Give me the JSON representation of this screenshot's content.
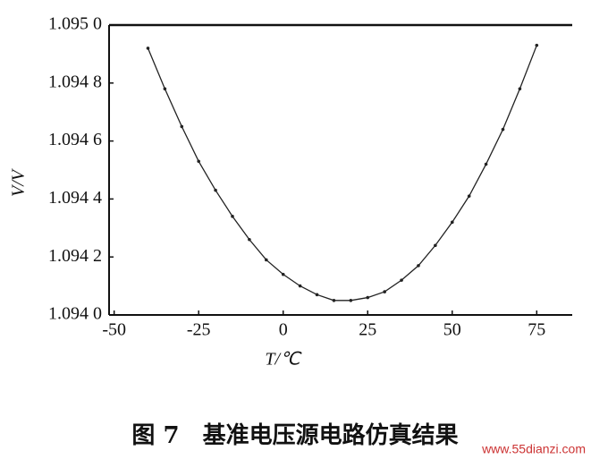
{
  "chart_data": {
    "type": "line",
    "xlabel": "T/℃",
    "ylabel": "V/V",
    "caption": "图 7　基准电压源电路仿真结果",
    "watermark": "www.55dianzi.com",
    "x": [
      -40,
      -35,
      -30,
      -25,
      -20,
      -15,
      -10,
      -5,
      0,
      5,
      10,
      15,
      20,
      25,
      30,
      35,
      40,
      45,
      50,
      55,
      60,
      65,
      70,
      75
    ],
    "values": [
      1.09492,
      1.09478,
      1.09465,
      1.09453,
      1.09443,
      1.09434,
      1.09426,
      1.09419,
      1.09414,
      1.0941,
      1.09407,
      1.09405,
      1.09405,
      1.09406,
      1.09408,
      1.09412,
      1.09417,
      1.09424,
      1.09432,
      1.09441,
      1.09452,
      1.09464,
      1.09478,
      1.09493
    ],
    "color": "#222222",
    "xlim": [
      -51.5,
      85.5
    ],
    "ylim": [
      1.094,
      1.095
    ],
    "xticks": [
      -50,
      -25,
      0,
      25,
      50,
      75
    ],
    "yticks": [
      {
        "value": 1.094,
        "label": "1.094 0"
      },
      {
        "value": 1.0942,
        "label": "1.094 2"
      },
      {
        "value": 1.0944,
        "label": "1.094 4"
      },
      {
        "value": 1.0946,
        "label": "1.094 6"
      },
      {
        "value": 1.0948,
        "label": "1.094 8"
      },
      {
        "value": 1.095,
        "label": "1.095 0"
      }
    ]
  }
}
